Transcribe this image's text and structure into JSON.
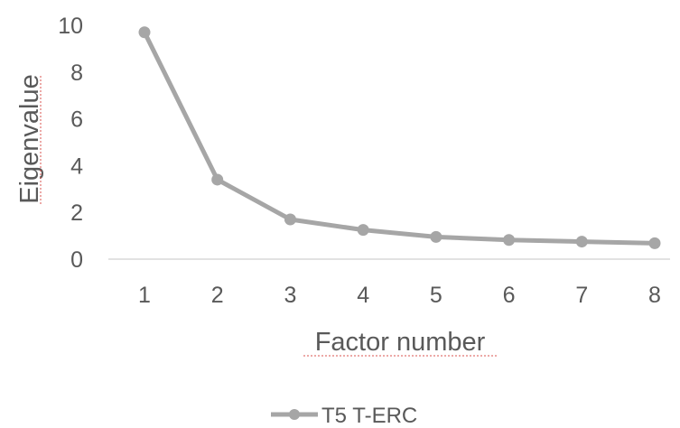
{
  "chart_data": {
    "type": "line",
    "xlabel": "Factor number",
    "ylabel": "Eigenvalue",
    "x": [
      1,
      2,
      3,
      4,
      5,
      6,
      7,
      8
    ],
    "ylim": [
      0,
      10
    ],
    "yticks": [
      0,
      2,
      4,
      6,
      8,
      10
    ],
    "grid": false,
    "legend": "bottom",
    "series": [
      {
        "name": "T5 T-ERC",
        "color": "#a6a6a6",
        "values": [
          9.7,
          3.4,
          1.7,
          1.25,
          0.95,
          0.82,
          0.75,
          0.68
        ]
      }
    ]
  }
}
